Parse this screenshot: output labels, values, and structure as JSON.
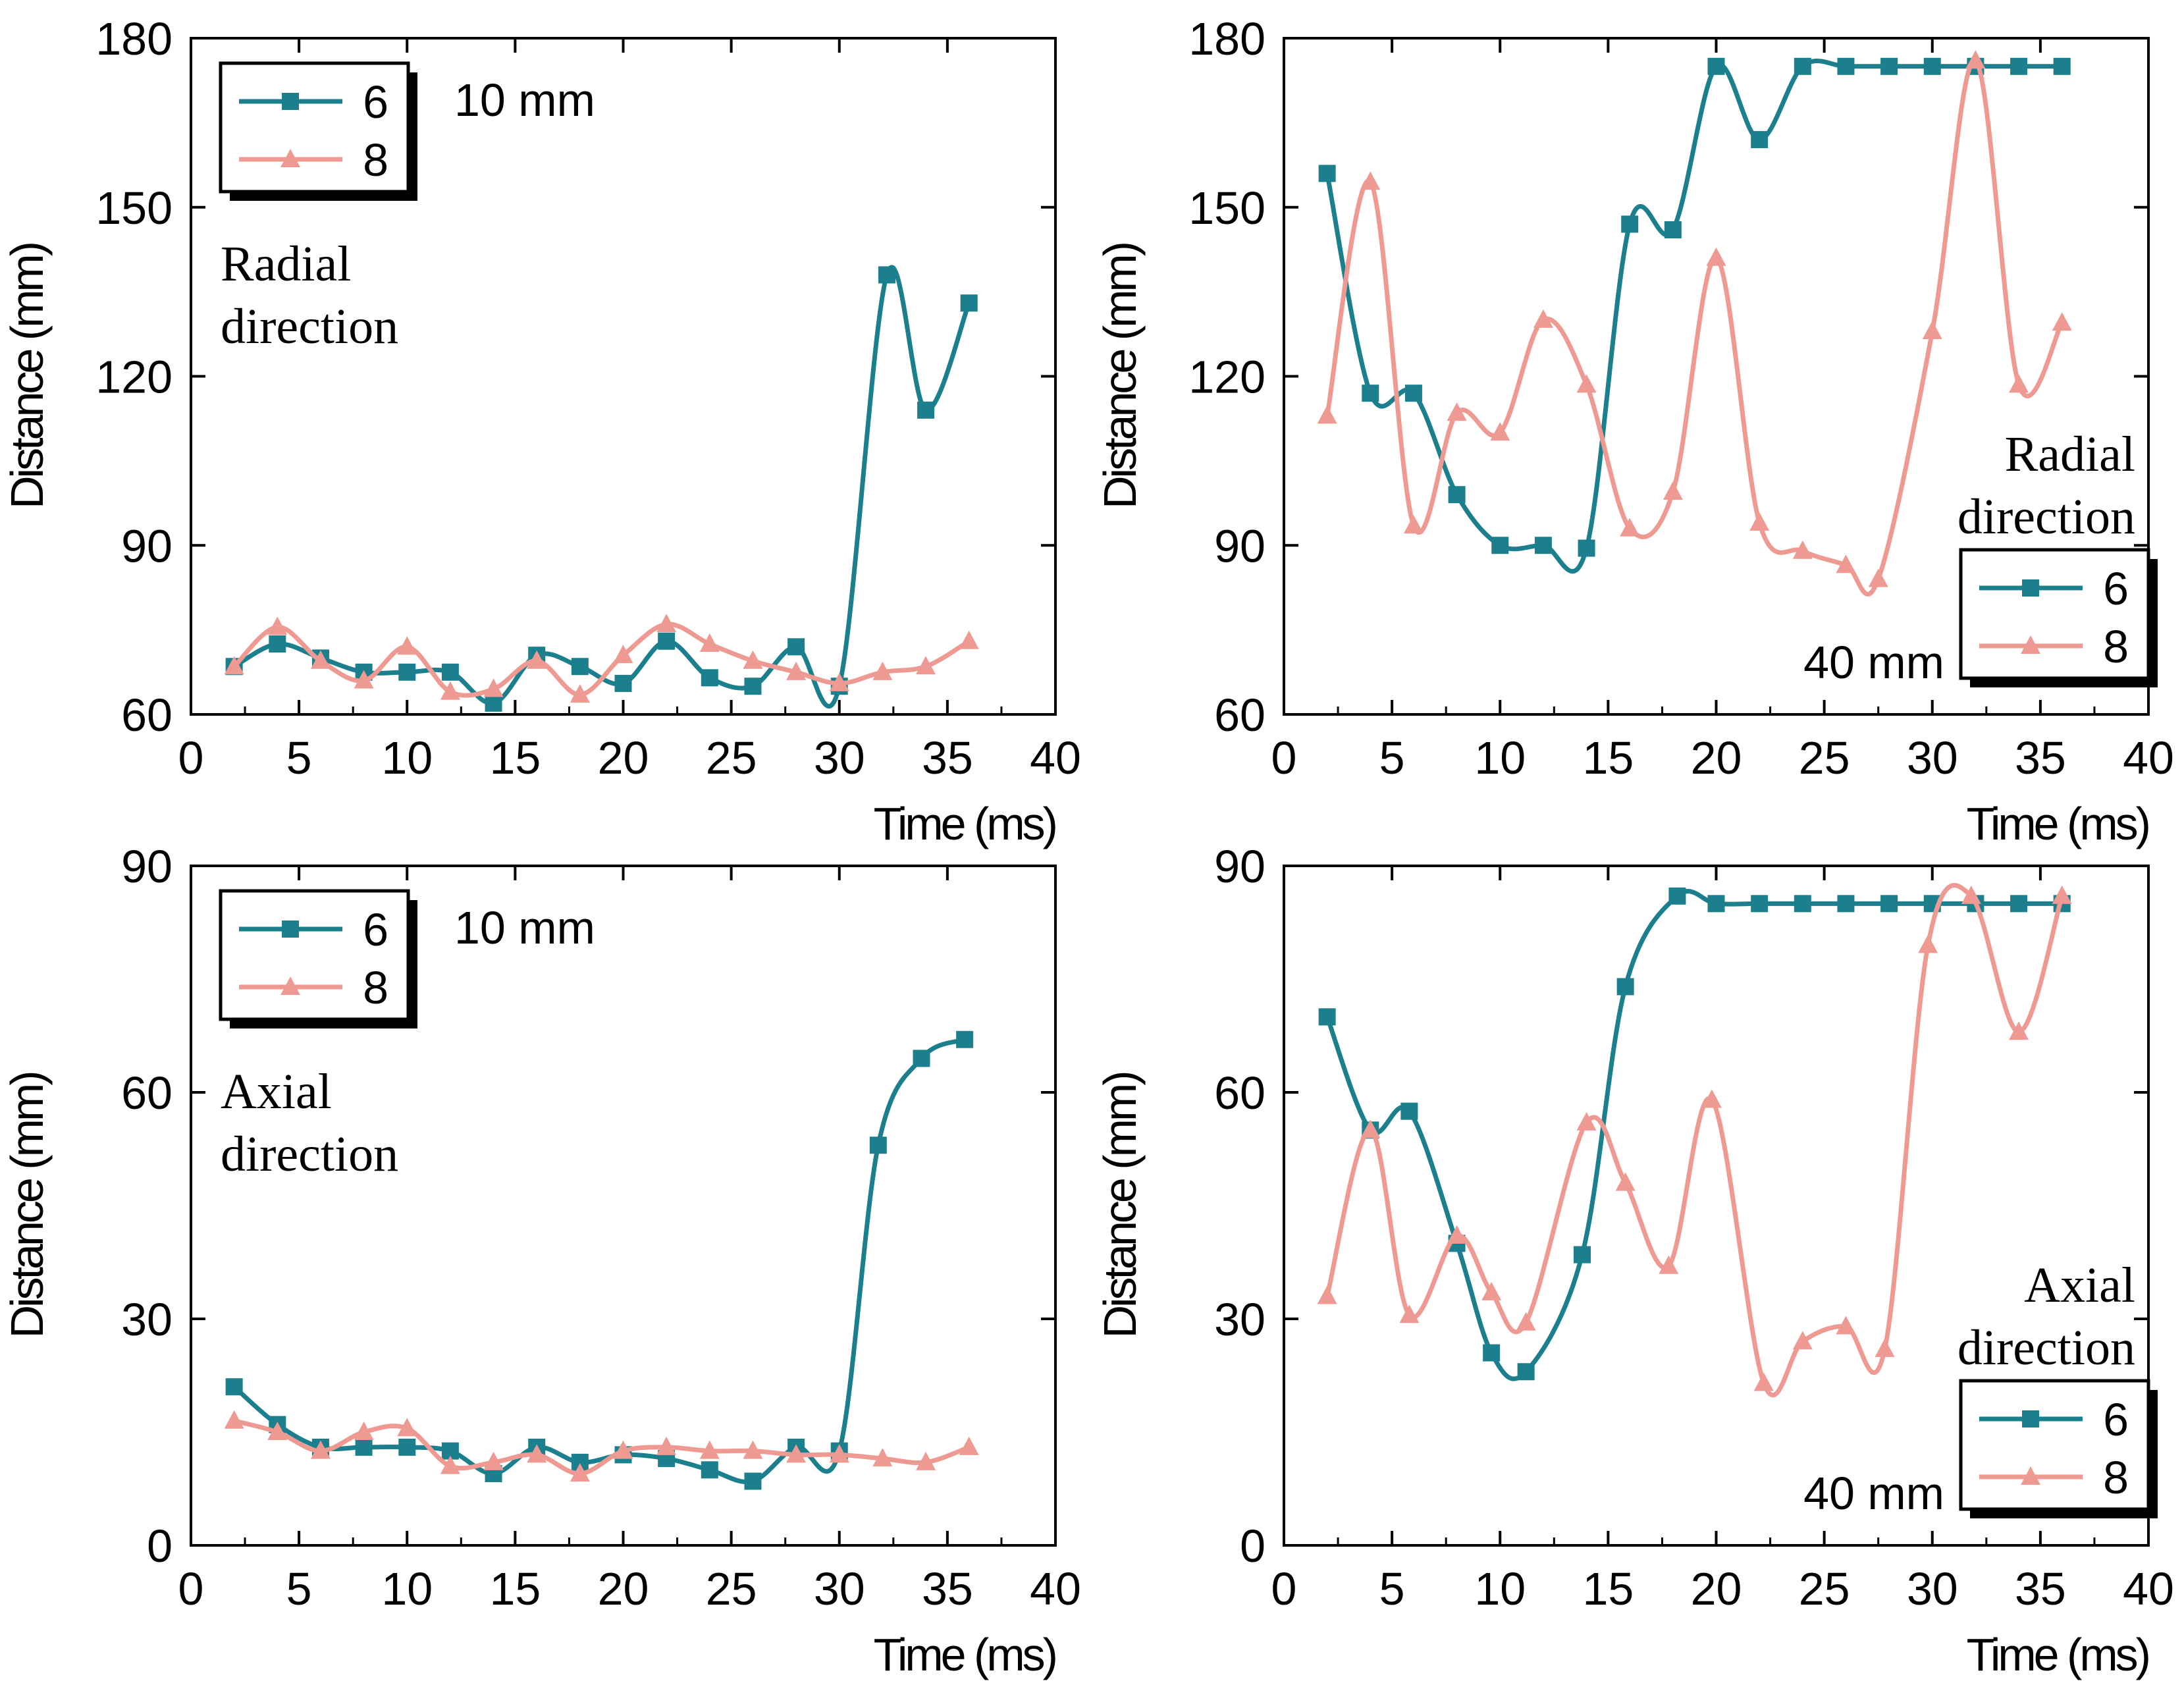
{
  "colors": {
    "series6": "#1b7f8e",
    "series8": "#ee9a92",
    "axis": "#000000"
  },
  "chart_data": [
    {
      "type": "line",
      "xlabel": "Time (ms)",
      "ylabel": "Distance (mm)",
      "xlim": [
        0,
        40
      ],
      "ylim": [
        60,
        180
      ],
      "xticks": [
        0,
        5,
        10,
        15,
        20,
        25,
        30,
        35,
        40
      ],
      "yticks": [
        60,
        90,
        120,
        150,
        180
      ],
      "annotation_size": "10 mm",
      "annotation_direction": [
        "Radial",
        "direction"
      ],
      "legend_placement": "top-left",
      "series": [
        {
          "name": "6",
          "x": [
            2,
            4,
            6,
            8,
            10,
            12,
            14,
            16,
            18,
            20,
            22,
            24,
            26,
            28,
            30,
            32.2,
            34,
            36
          ],
          "y": [
            68.5,
            72.5,
            70,
            67.5,
            67.5,
            67.5,
            62,
            70.5,
            68.5,
            65.5,
            73,
            66.5,
            65,
            72,
            65,
            138,
            114,
            133
          ]
        },
        {
          "name": "8",
          "x": [
            2,
            4,
            6,
            8,
            10,
            12,
            14,
            16,
            18,
            20,
            22,
            24,
            26,
            28,
            30,
            32,
            34,
            36
          ],
          "y": [
            68.5,
            75.5,
            69.5,
            66,
            72,
            64,
            64.5,
            69.5,
            63.5,
            70.5,
            76,
            72.5,
            69.5,
            67.5,
            65.5,
            67.5,
            68.5,
            73
          ]
        }
      ]
    },
    {
      "type": "line",
      "xlabel": "Time (ms)",
      "ylabel": "Distance (mm)",
      "xlim": [
        0,
        40
      ],
      "ylim": [
        60,
        180
      ],
      "xticks": [
        0,
        5,
        10,
        15,
        20,
        25,
        30,
        35,
        40
      ],
      "yticks": [
        60,
        90,
        120,
        150,
        180
      ],
      "annotation_size": "40 mm",
      "annotation_direction": [
        "Radial",
        "direction"
      ],
      "legend_placement": "bottom-right",
      "series": [
        {
          "name": "6",
          "x": [
            2,
            4,
            6,
            8,
            10,
            12,
            14,
            16,
            18,
            20,
            22,
            24,
            26,
            28,
            30,
            32,
            34,
            36
          ],
          "y": [
            156,
            117,
            117,
            99,
            90,
            90,
            89.5,
            147,
            146,
            175,
            162,
            175,
            175,
            175,
            175,
            175,
            175,
            175
          ]
        },
        {
          "name": "8",
          "x": [
            2,
            4,
            6,
            8,
            10,
            12,
            14,
            16,
            18,
            20,
            22,
            24,
            26,
            27.5,
            30,
            32,
            34,
            36
          ],
          "y": [
            113,
            154.5,
            93.5,
            113.5,
            110,
            130,
            118.5,
            93,
            99.5,
            141,
            94,
            89,
            86.5,
            84,
            128,
            176,
            118.5,
            129.5
          ]
        }
      ]
    },
    {
      "type": "line",
      "xlabel": "Time (ms)",
      "ylabel": "Distance (mm)",
      "xlim": [
        0,
        40
      ],
      "ylim": [
        0,
        90
      ],
      "xticks": [
        0,
        5,
        10,
        15,
        20,
        25,
        30,
        35,
        40
      ],
      "yticks": [
        0,
        30,
        60,
        90
      ],
      "annotation_size": "10 mm",
      "annotation_direction": [
        "Axial",
        "direction"
      ],
      "legend_placement": "top-left",
      "series": [
        {
          "name": "6",
          "x": [
            2,
            4,
            6,
            8,
            10,
            12,
            14,
            16,
            18,
            20,
            22,
            24,
            26,
            28,
            30,
            31.8,
            33.8,
            35.8
          ],
          "y": [
            21,
            16,
            13,
            13,
            13,
            12.5,
            9.5,
            13,
            11,
            12,
            11.5,
            10,
            8.5,
            13,
            12.5,
            53,
            64.5,
            67
          ]
        },
        {
          "name": "8",
          "x": [
            2,
            4,
            6,
            8,
            10,
            12,
            14,
            16,
            18,
            20,
            22,
            24,
            26,
            28,
            30,
            32,
            34,
            36
          ],
          "y": [
            16.5,
            15,
            12.5,
            15,
            15.5,
            10.5,
            11,
            12,
            9.5,
            12.5,
            13,
            12.5,
            12.5,
            12,
            12,
            11.5,
            11,
            13
          ]
        }
      ]
    },
    {
      "type": "line",
      "xlabel": "Time (ms)",
      "ylabel": "Distance (mm)",
      "xlim": [
        0,
        40
      ],
      "ylim": [
        0,
        90
      ],
      "xticks": [
        0,
        5,
        10,
        15,
        20,
        25,
        30,
        35,
        40
      ],
      "yticks": [
        0,
        30,
        60,
        90
      ],
      "annotation_size": "40 mm",
      "annotation_direction": [
        "Axial",
        "direction"
      ],
      "legend_placement": "bottom-right",
      "series": [
        {
          "name": "6",
          "x": [
            2,
            4,
            5.8,
            8,
            9.6,
            11.2,
            13.8,
            15.8,
            18.2,
            20,
            22,
            24,
            26,
            28,
            30,
            32,
            34,
            36
          ],
          "y": [
            70,
            55,
            57.5,
            40,
            25.5,
            23,
            38.5,
            74,
            86,
            85,
            85,
            85,
            85,
            85,
            85,
            85,
            85,
            85
          ]
        },
        {
          "name": "8",
          "x": [
            2,
            4,
            5.8,
            8,
            9.6,
            11.2,
            14,
            15.8,
            17.8,
            19.8,
            22.2,
            24,
            26,
            27.8,
            29.8,
            31.8,
            34,
            36
          ],
          "y": [
            33,
            55,
            30.5,
            41,
            33.5,
            29.5,
            56,
            48,
            37,
            59,
            21.5,
            27,
            29,
            26,
            79.5,
            86,
            68,
            86
          ]
        }
      ]
    }
  ]
}
